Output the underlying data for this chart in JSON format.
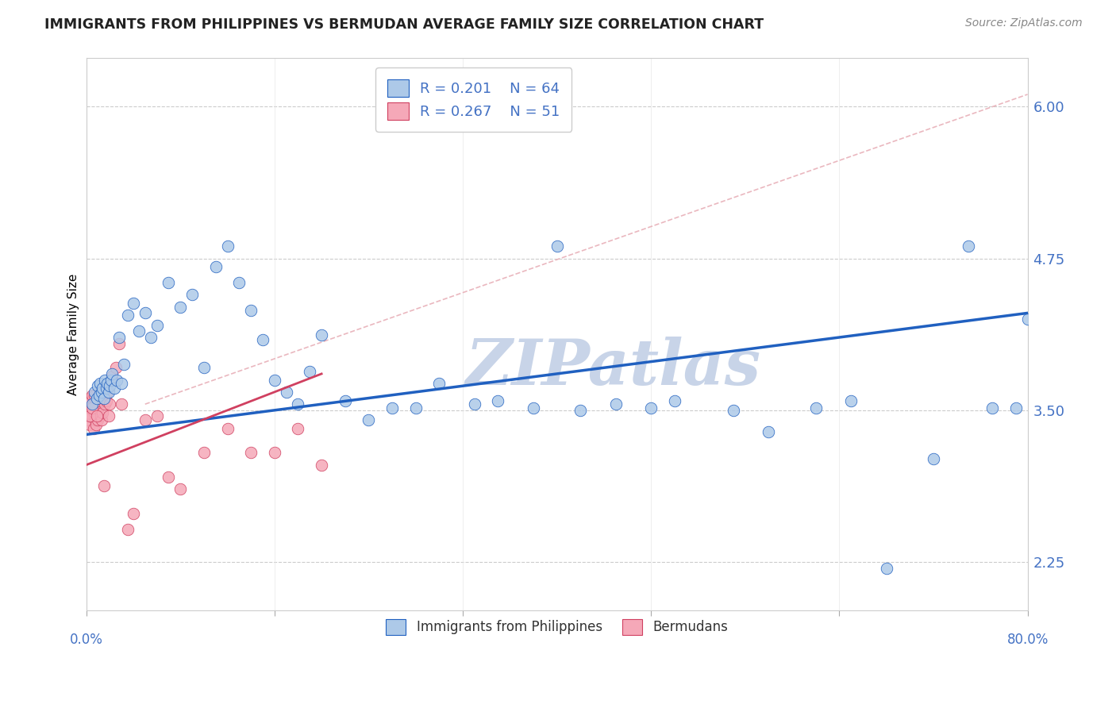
{
  "title": "IMMIGRANTS FROM PHILIPPINES VS BERMUDAN AVERAGE FAMILY SIZE CORRELATION CHART",
  "source_text": "Source: ZipAtlas.com",
  "ylabel": "Average Family Size",
  "y_ticks": [
    2.25,
    3.5,
    4.75,
    6.0
  ],
  "xlim": [
    0.0,
    80.0
  ],
  "ylim": [
    1.85,
    6.4
  ],
  "blue_R": "0.201",
  "blue_N": "64",
  "pink_R": "0.267",
  "pink_N": "51",
  "blue_color": "#adc9e8",
  "pink_color": "#f5a8b8",
  "blue_line_color": "#2060c0",
  "pink_line_color": "#d04060",
  "diag_line_color": "#e8b0b8",
  "watermark": "ZIPatlas",
  "watermark_color": "#c8d4e8",
  "blue_x": [
    0.5,
    0.7,
    0.9,
    1.0,
    1.1,
    1.2,
    1.3,
    1.4,
    1.5,
    1.6,
    1.7,
    1.8,
    1.9,
    2.0,
    2.1,
    2.2,
    2.4,
    2.6,
    2.8,
    3.0,
    3.5,
    4.0,
    4.5,
    5.0,
    5.5,
    6.0,
    7.0,
    8.0,
    9.0,
    10.0,
    11.0,
    12.0,
    13.0,
    14.0,
    15.0,
    16.0,
    17.0,
    18.0,
    19.0,
    20.0,
    22.0,
    24.0,
    26.0,
    28.0,
    30.0,
    33.0,
    35.0,
    38.0,
    40.0,
    42.0,
    45.0,
    48.0,
    50.0,
    55.0,
    58.0,
    62.0,
    65.0,
    68.0,
    72.0,
    75.0,
    77.0,
    79.0,
    80.0,
    3.2
  ],
  "blue_y": [
    3.55,
    3.65,
    3.6,
    3.7,
    3.62,
    3.72,
    3.65,
    3.68,
    3.6,
    3.75,
    3.68,
    3.72,
    3.65,
    3.7,
    3.75,
    3.8,
    3.68,
    3.75,
    4.1,
    3.72,
    4.28,
    4.38,
    4.15,
    4.3,
    4.1,
    4.2,
    4.55,
    4.35,
    4.45,
    3.85,
    4.68,
    4.85,
    4.55,
    4.32,
    4.08,
    3.75,
    3.65,
    3.55,
    3.82,
    4.12,
    3.58,
    3.42,
    3.52,
    3.52,
    3.72,
    3.55,
    3.58,
    3.52,
    4.85,
    3.5,
    3.55,
    3.52,
    3.58,
    3.5,
    3.32,
    3.52,
    3.58,
    2.2,
    3.1,
    4.85,
    3.52,
    3.52,
    4.25,
    3.88
  ],
  "pink_x": [
    0.1,
    0.15,
    0.2,
    0.25,
    0.3,
    0.35,
    0.4,
    0.45,
    0.5,
    0.55,
    0.6,
    0.65,
    0.7,
    0.75,
    0.8,
    0.85,
    0.9,
    0.95,
    1.0,
    1.05,
    1.1,
    1.15,
    1.2,
    1.3,
    1.4,
    1.5,
    1.6,
    1.7,
    1.8,
    1.9,
    2.0,
    2.2,
    2.5,
    2.8,
    3.0,
    3.5,
    4.0,
    5.0,
    6.0,
    7.0,
    8.0,
    10.0,
    12.0,
    14.0,
    16.0,
    18.0,
    20.0,
    0.3,
    0.5,
    0.7,
    0.9
  ],
  "pink_y": [
    3.42,
    3.55,
    3.48,
    3.6,
    3.38,
    3.52,
    3.45,
    3.58,
    3.62,
    3.5,
    3.55,
    3.35,
    3.48,
    3.42,
    3.55,
    3.38,
    3.62,
    3.42,
    3.52,
    3.58,
    3.65,
    3.45,
    3.6,
    3.42,
    3.48,
    2.88,
    3.55,
    3.58,
    3.65,
    3.45,
    3.55,
    3.78,
    3.85,
    4.05,
    3.55,
    2.52,
    2.65,
    3.42,
    3.45,
    2.95,
    2.85,
    3.15,
    3.35,
    3.15,
    3.15,
    3.35,
    3.05,
    3.45,
    3.52,
    3.62,
    3.45
  ],
  "blue_trend_x0": 0.0,
  "blue_trend_y0": 3.3,
  "blue_trend_x1": 80.0,
  "blue_trend_y1": 4.3,
  "pink_trend_x0": 0.0,
  "pink_trend_y0": 3.05,
  "pink_trend_x1": 20.0,
  "pink_trend_y1": 3.8,
  "diag_x0": 5.0,
  "diag_y0": 3.55,
  "diag_x1": 80.0,
  "diag_y1": 6.1
}
